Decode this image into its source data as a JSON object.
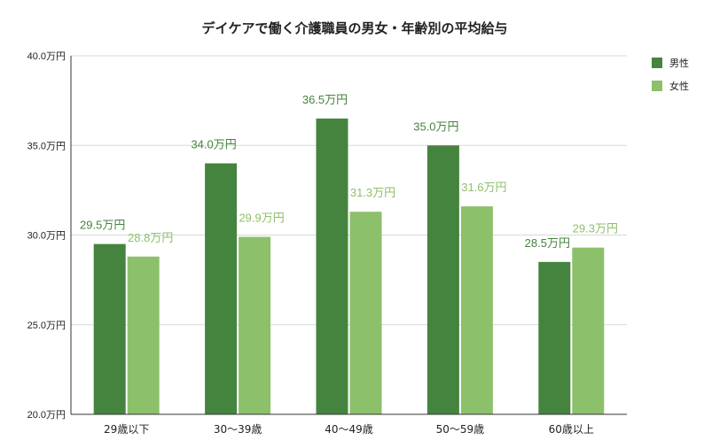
{
  "chart_data": {
    "type": "bar",
    "title": "デイケアで働く介護職員の男女・年齢別の平均給与",
    "categories": [
      "29歳以下",
      "30〜39歳",
      "40〜49歳",
      "50〜59歳",
      "60歳以上"
    ],
    "series": [
      {
        "name": "男性",
        "values": [
          29.5,
          34.0,
          36.5,
          35.0,
          28.5
        ],
        "labels": [
          "29.5万円",
          "34.0万円",
          "36.5万円",
          "35.0万円",
          "28.5万円"
        ],
        "color": "#45843f"
      },
      {
        "name": "女性",
        "values": [
          28.8,
          29.9,
          31.3,
          31.6,
          29.3
        ],
        "labels": [
          "28.8万円",
          "29.9万円",
          "31.3万円",
          "31.6万円",
          "29.3万円"
        ],
        "color": "#8dc06a"
      }
    ],
    "ylim": [
      20,
      40
    ],
    "yticks": [
      20,
      25,
      30,
      35,
      40
    ],
    "ytick_labels": [
      "20.0万円",
      "25.0万円",
      "30.0万円",
      "35.0万円",
      "40.0万円"
    ],
    "grid": true,
    "legend": "right"
  }
}
